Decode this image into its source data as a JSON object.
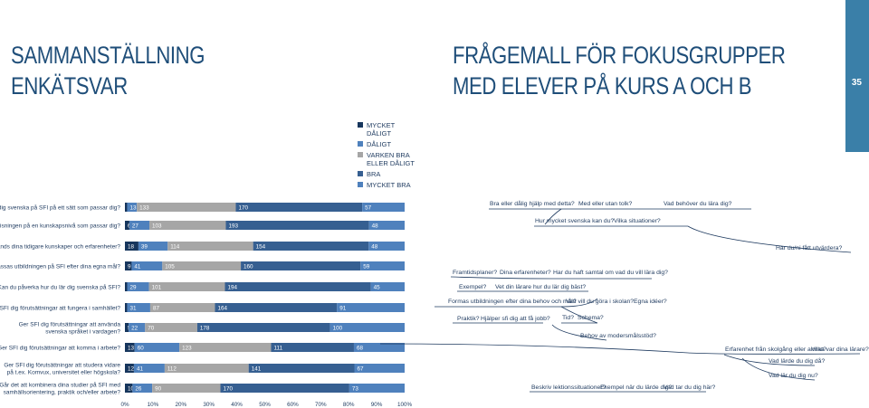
{
  "titles": {
    "left": [
      "SAMMANSTÄLLNING",
      "ENKÄTSVAR"
    ],
    "right": [
      "FRÅGEMALL FÖR FOKUSGRUPPER",
      "MED ELEVER PÅ KURS A OCH B"
    ]
  },
  "page_number": "35",
  "legend": [
    {
      "label": "MYCKET DÅLIGT",
      "color": "#17365d"
    },
    {
      "label": "DÅLIGT",
      "color": "#4f81bd"
    },
    {
      "label": "VARKEN BRA ELLER DÅLIGT",
      "color": "#a6a6a6"
    },
    {
      "label": "BRA",
      "color": "#365f91"
    },
    {
      "label": "MYCKET BRA",
      "color": "#4f81bd"
    }
  ],
  "chart_data": {
    "type": "bar",
    "orientation": "horizontal",
    "stacked": "100%",
    "x_ticks": [
      "0%",
      "10%",
      "20%",
      "30%",
      "40%",
      "50%",
      "60%",
      "70%",
      "80%",
      "90%",
      "100%"
    ],
    "series": [
      {
        "name": "MYCKET DÅLIGT",
        "color": "#17365d"
      },
      {
        "name": "DÅLIGT",
        "color": "#4f81bd"
      },
      {
        "name": "VARKEN BRA ELLER DÅLIGT",
        "color": "#a6a6a6"
      },
      {
        "name": "BRA",
        "color": "#365f91"
      },
      {
        "name": "MYCKET BRA",
        "color": "#4f81bd"
      }
    ],
    "categories": [
      {
        "label": [
          "Lär du dig svenska på SFI på ett sätt som passar dig?"
        ],
        "values": [
          3,
          13,
          133,
          170,
          57
        ],
        "labels": [
          "3",
          "13",
          "133",
          "170",
          "57"
        ]
      },
      {
        "label": [
          "Är undervisningen på en kunskapsnivå som passar dig?"
        ],
        "values": [
          6,
          27,
          103,
          193,
          48
        ],
        "labels": [
          "6",
          "27",
          "103",
          "193",
          "48"
        ]
      },
      {
        "label": [
          "Används dina tidigare kunskaper och erfarenheter?"
        ],
        "values": [
          18,
          39,
          114,
          154,
          48
        ],
        "labels": [
          "18",
          "39",
          "114",
          "154",
          "48"
        ]
      },
      {
        "label": [
          "Anpassas utbildningen på SFI efter dina egna mål?"
        ],
        "values": [
          9,
          41,
          105,
          160,
          59
        ],
        "labels": [
          "9",
          "41",
          "105",
          "160",
          "59"
        ]
      },
      {
        "label": [
          "Kan du påverka hur du lär dig svenska på SFI?"
        ],
        "values": [
          3,
          29,
          101,
          194,
          45
        ],
        "labels": [
          "3",
          "29",
          "101",
          "194",
          "45"
        ]
      },
      {
        "label": [
          "Ger SFI dig förutsättningar att fungera i samhället?"
        ],
        "values": [
          3,
          31,
          87,
          164,
          91
        ],
        "labels": [
          "3",
          "31",
          "87",
          "164",
          "91"
        ]
      },
      {
        "label": [
          "Ger SFI dig förutsättningar att använda",
          "svenska språket i vardagen?"
        ],
        "values": [
          5,
          22,
          70,
          178,
          100
        ],
        "labels": [
          "5",
          "22",
          "70",
          "178",
          "100"
        ]
      },
      {
        "label": [
          "Ger SFI dig förutsättningar att komma i arbete?"
        ],
        "values": [
          13,
          60,
          123,
          111,
          68
        ],
        "labels": [
          "13",
          "60",
          "123",
          "111",
          "68"
        ]
      },
      {
        "label": [
          "Ger SFI dig förutsättningar att studera vidare",
          "på t.ex. Komvux, universitet eller högskola?"
        ],
        "values": [
          12,
          41,
          112,
          141,
          67
        ],
        "labels": [
          "12",
          "41",
          "112",
          "141",
          "67"
        ]
      },
      {
        "label": [
          "Går det att kombinera dina studier på SFI med",
          "samhällsorientering, praktik och/eller arbete?"
        ],
        "values": [
          10,
          26,
          90,
          170,
          73
        ],
        "labels": [
          "10",
          "26",
          "90",
          "170",
          "73"
        ]
      }
    ]
  },
  "mindmap_notes": [
    "Bra eller dålig hjälp med detta?",
    "Med eller utan tolk?",
    "Vad behöver du lära dig?",
    "Hur mycket svenska kan du?",
    "Vilka situationer?",
    "Har du/ni fått utvärdera?",
    "Framtidsplaner?",
    "Dina erfarenheter?",
    "Har du haft samtal om vad du vill lära dig?",
    "Exempel?",
    "Vet din lärare hur du lär dig bäst?",
    "Formas utbildningen efter dina behov och mål?",
    "Vad vill du göra i skolan?",
    "Egna idéer?",
    "Praktik?",
    "Hjälper sfi dig att få jobb?",
    "Tid?",
    "Schema?",
    "Behov av modersmålsstöd?",
    "Erfarenhet från skolgång eller annat?",
    "Vilka var dina lärare?",
    "Vad lärde du dig då?",
    "Vad lär du dig nu?",
    "Beskriv lektionssituationer?",
    "Exempel när du lärde dig?",
    "Vad tar du dig här?"
  ]
}
